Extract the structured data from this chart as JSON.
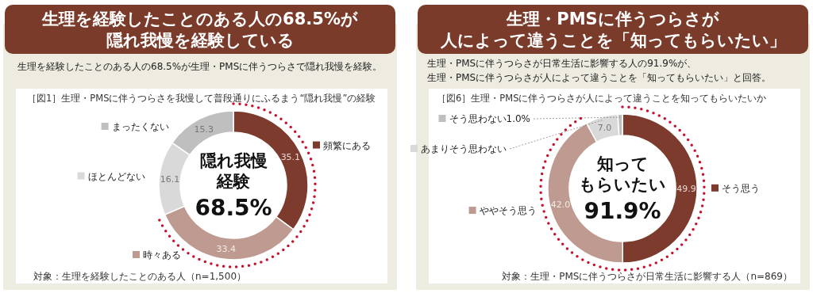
{
  "chart_data": [
    {
      "type": "donut",
      "legend": "bottom left",
      "title": "生理を経験したことのある人の68.5%が隠れ我慢を経験している",
      "subtitle": "生理を経験したことのある人の68.5%が生理・PMSに伴うつらさで隠れ我慢を経験。",
      "categories": [
        "頻繁にある",
        "時々ある",
        "ほとんどない",
        "まったくない"
      ],
      "values": [
        35.1,
        33.4,
        16.1,
        15.3
      ],
      "colors": [
        "#7d3b2e",
        "#bf9a90",
        "#d9d9d9",
        "#bfbfbf"
      ],
      "data_labels": true,
      "annotations": [
        "［図1］生理・PMSに伴うつらさを我慢して普段通りにふるまう“隠れ我慢”の経験",
        "隠れ我慢",
        "経験",
        "68.5%",
        "対象：生理を経験したことのある人（n=1,500）"
      ]
    },
    {
      "type": "donut",
      "legend": "top left",
      "title": "生理・PMSに伴うつらさが人によって違うことを「知ってもらいたい」",
      "subtitle": "生理・PMSに伴うつらさが日常生活に影響する人の91.9%が、生理・PMSに伴うつらさが人によって違うことを「知ってもらいたい」と回答。",
      "categories": [
        "そう思う",
        "ややそう思う",
        "あまりそう思わない",
        "そう思わない"
      ],
      "values": [
        49.9,
        42.0,
        7.0,
        1.0
      ],
      "colors": [
        "#7d3b2e",
        "#bf9a90",
        "#d9d9d9",
        "#bfbfbf"
      ],
      "value_labels": [
        "49.9",
        "42.0",
        "7.0",
        "1.0%"
      ],
      "annotations": [
        "［図6］生理・PMSに伴うつらさが人によって違うことを知ってもらいたいか",
        "知って",
        "もらいたい",
        "91.9%",
        "対象：生理・PMSに伴うつらさが日常生活に影響する人（n=869）"
      ]
    }
  ]
}
